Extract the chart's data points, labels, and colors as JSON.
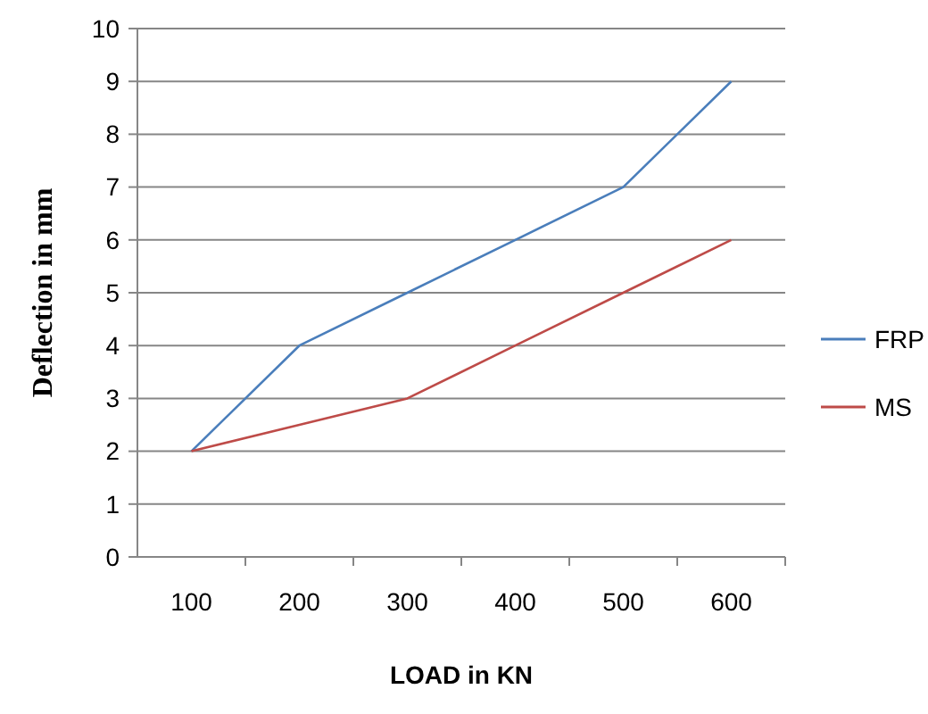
{
  "chart_data": {
    "type": "line",
    "xlabel": "LOAD in KN",
    "ylabel": "Deflection in mm",
    "categories": [
      "100",
      "200",
      "300",
      "400",
      "500",
      "600"
    ],
    "series": [
      {
        "name": "FRP",
        "color": "#4a7ebb",
        "values": [
          2,
          4,
          5,
          6,
          7,
          9
        ]
      },
      {
        "name": "MS",
        "color": "#be4b48",
        "values": [
          2,
          2.5,
          3,
          4,
          5,
          6
        ]
      }
    ],
    "ylim": [
      0,
      10
    ],
    "yticks": [
      0,
      1,
      2,
      3,
      4,
      5,
      6,
      7,
      8,
      9,
      10
    ],
    "grid": "y",
    "legend": "right",
    "marker": "none",
    "line_style": "solid"
  }
}
